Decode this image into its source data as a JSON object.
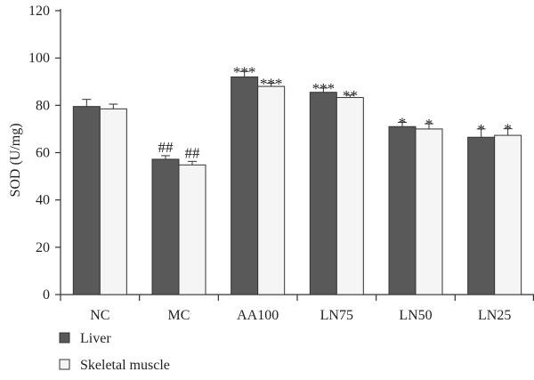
{
  "chart_data": {
    "type": "bar",
    "ylabel": "SOD (U/mg)",
    "ylim": [
      0,
      120
    ],
    "yticks": [
      "0",
      "20",
      "40",
      "60",
      "80",
      "100",
      "120"
    ],
    "categories": [
      "NC",
      "MC",
      "AA100",
      "LN75",
      "LN50",
      "LN25"
    ],
    "series": [
      {
        "name": "Liver",
        "color": "#595959",
        "values": [
          79.5,
          57.2,
          92.0,
          85.5,
          71.0,
          66.5
        ],
        "errors": [
          3.0,
          1.5,
          2.3,
          1.8,
          1.8,
          3.5
        ],
        "significance": [
          "",
          "##",
          "***",
          "***",
          "*",
          "*"
        ]
      },
      {
        "name": "Skeletal muscle",
        "color": "#f5f5f5",
        "values": [
          78.5,
          54.8,
          88.0,
          83.3,
          70.0,
          67.3
        ],
        "errors": [
          2.0,
          1.5,
          1.3,
          1.0,
          2.2,
          2.8
        ],
        "significance": [
          "",
          "##",
          "***",
          "**",
          "*",
          "*"
        ]
      }
    ],
    "grid": false,
    "legend_position": "bottom-left"
  }
}
